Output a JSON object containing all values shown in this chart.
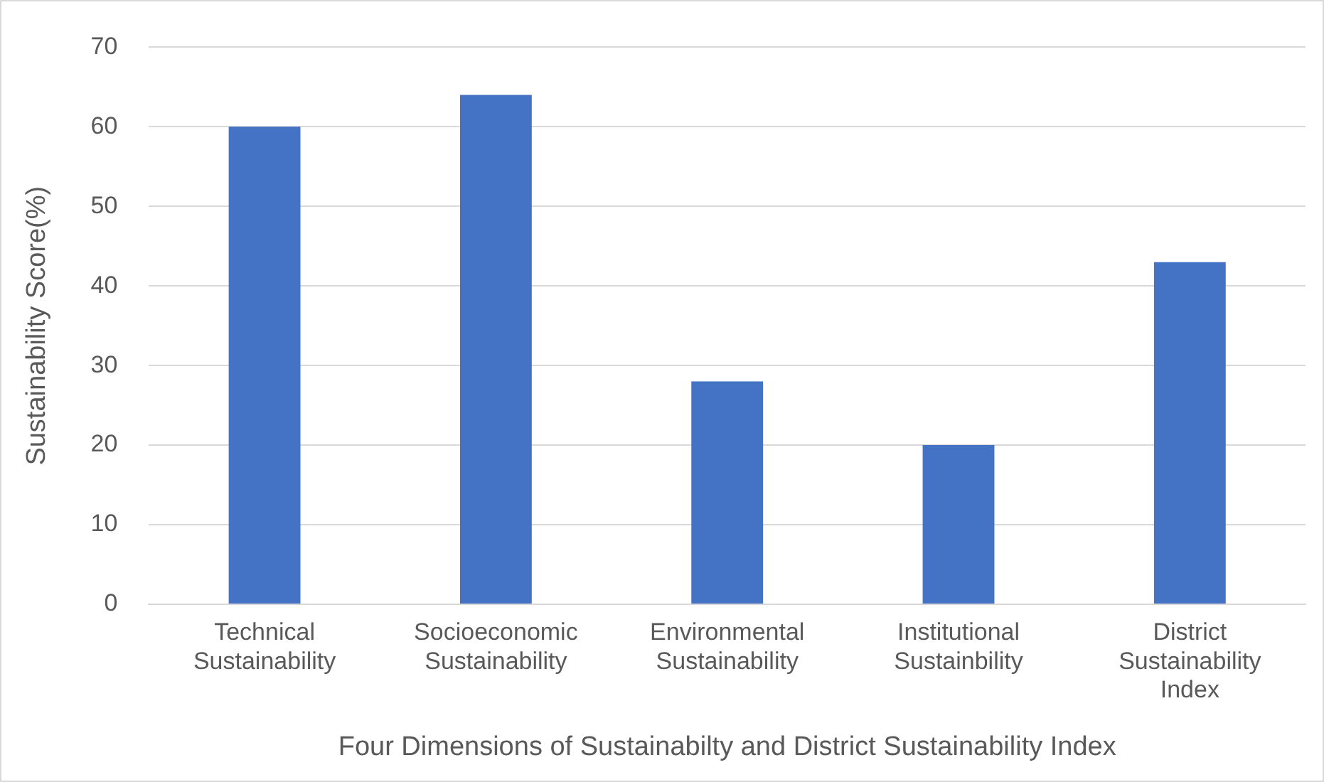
{
  "chart_data": {
    "type": "bar",
    "xlabel": "Four Dimensions of Sustainabilty and District Sustainability Index",
    "ylabel": "Sustainability Score(%)",
    "categories": [
      "Technical Sustainability",
      "Socioeconomic Sustainability",
      "Environmental Sustainability",
      "Institutional Sustainbility",
      "District Sustainability Index"
    ],
    "values": [
      60,
      64,
      28,
      20,
      43
    ],
    "color": "#4472c4",
    "ylim": [
      0,
      70
    ],
    "yticks": [
      0,
      10,
      20,
      30,
      40,
      50,
      60,
      70
    ],
    "grid": "y",
    "legend": false
  }
}
